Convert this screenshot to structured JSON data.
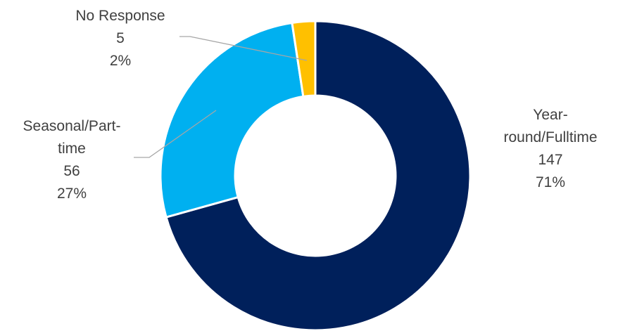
{
  "chart_data": {
    "type": "pie",
    "variant": "donut",
    "title": "",
    "legend": "none",
    "slices": [
      {
        "category_lines": [
          "Year-",
          "round/Fulltime"
        ],
        "count": "147",
        "percent": "71%",
        "value": 147,
        "color": "#00205b"
      },
      {
        "category_lines": [
          "Seasonal/Part-",
          "time"
        ],
        "count": "56",
        "percent": "27%",
        "value": 56,
        "color": "#00b0f0"
      },
      {
        "category_lines": [
          "No Response"
        ],
        "count": "5",
        "percent": "2%",
        "value": 5,
        "color": "#ffc000"
      }
    ]
  }
}
